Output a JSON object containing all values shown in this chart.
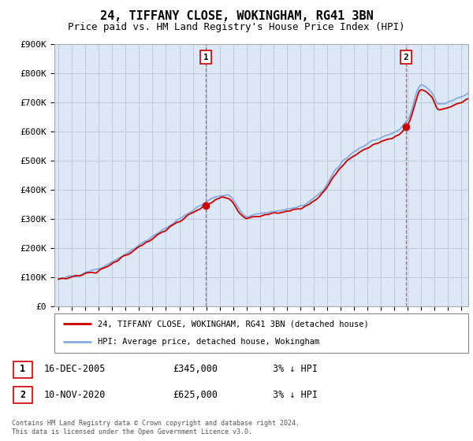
{
  "title": "24, TIFFANY CLOSE, WOKINGHAM, RG41 3BN",
  "subtitle": "Price paid vs. HM Land Registry's House Price Index (HPI)",
  "ylim": [
    0,
    900000
  ],
  "yticks": [
    0,
    100000,
    200000,
    300000,
    400000,
    500000,
    600000,
    700000,
    800000,
    900000
  ],
  "ytick_labels": [
    "£0",
    "£100K",
    "£200K",
    "£300K",
    "£400K",
    "£500K",
    "£600K",
    "£700K",
    "£800K",
    "£900K"
  ],
  "xlim_start": 1994.7,
  "xlim_end": 2025.5,
  "line_color_price": "#cc0000",
  "line_color_hpi": "#88aadd",
  "purchase1_x": 2005.96,
  "purchase1_y": 345000,
  "purchase2_x": 2020.87,
  "purchase2_y": 625000,
  "legend_label1": "24, TIFFANY CLOSE, WOKINGHAM, RG41 3BN (detached house)",
  "legend_label2": "HPI: Average price, detached house, Wokingham",
  "annotation1_label": "1",
  "annotation1_date": "16-DEC-2005",
  "annotation1_price": "£345,000",
  "annotation1_hpi": "3% ↓ HPI",
  "annotation2_label": "2",
  "annotation2_date": "10-NOV-2020",
  "annotation2_price": "£625,000",
  "annotation2_hpi": "3% ↓ HPI",
  "footer": "Contains HM Land Registry data © Crown copyright and database right 2024.\nThis data is licensed under the Open Government Licence v3.0.",
  "plot_bg_color": "#dce8f5",
  "grid_color": "#bbccdd",
  "title_fontsize": 11,
  "subtitle_fontsize": 9,
  "tick_fontsize": 8
}
